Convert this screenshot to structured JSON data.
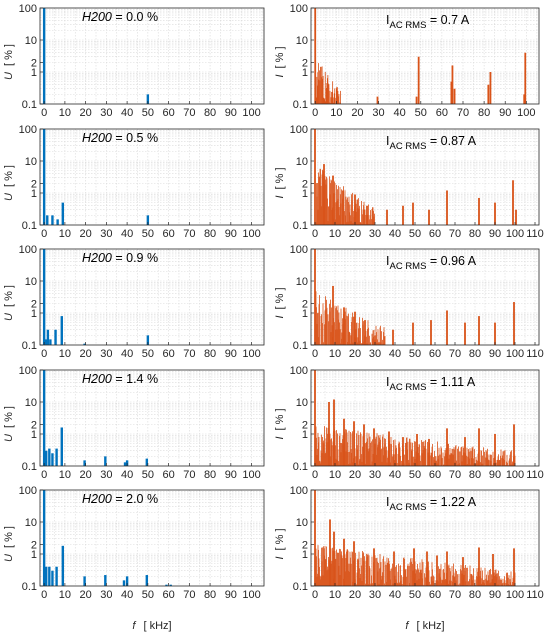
{
  "figure": {
    "x_axis_label": {
      "var": "f",
      "unit": "[ kHz]"
    },
    "left_y_axis_label": {
      "var": "U",
      "unit": "[ % ]"
    },
    "right_y_axis_label": {
      "var": "I",
      "unit": "[ % ]"
    },
    "colors": {
      "voltage": "#0072BD",
      "current": "#D95319",
      "grid": "#d9d9d9"
    }
  },
  "chart_data": [
    {
      "type": "bar",
      "side": "voltage",
      "row": 0,
      "annotation": {
        "var": "H200",
        "text": " = 0.0 %"
      },
      "x_ticks": [
        "0",
        "10",
        "20",
        "30",
        "40",
        "50",
        "60",
        "70",
        "80",
        "90",
        "100"
      ],
      "y_ticks": [
        "0.1",
        "1",
        "2",
        "10",
        "100"
      ],
      "xlim": [
        -2,
        106
      ],
      "ylim": [
        0.1,
        100
      ],
      "yscale": "log",
      "x": [
        0,
        50
      ],
      "values": [
        100,
        0.2
      ]
    },
    {
      "type": "bar",
      "side": "current",
      "row": 0,
      "annotation": {
        "main": "I",
        "sub": "AC RMS",
        "text": " = 0.7 A"
      },
      "x_ticks": [
        "0",
        "10",
        "20",
        "30",
        "40",
        "50",
        "60",
        "70",
        "80",
        "90",
        "100"
      ],
      "y_ticks": [
        "0.1",
        "1",
        "2",
        "10",
        "100"
      ],
      "xlim": [
        -2,
        106
      ],
      "ylim": [
        0.1,
        100
      ],
      "yscale": "log",
      "noise": {
        "start": 0.5,
        "end": 12,
        "hi": 3,
        "lo": 0.12
      },
      "x": [
        0,
        29.5,
        48,
        49,
        64.5,
        65,
        66,
        82,
        83,
        99,
        99.5
      ],
      "values": [
        100,
        0.17,
        0.17,
        3,
        0.5,
        1.6,
        0.3,
        0.4,
        1,
        0.2,
        4
      ]
    },
    {
      "type": "bar",
      "side": "voltage",
      "row": 1,
      "annotation": {
        "var": "H200",
        "text": " = 0.5 %"
      },
      "x_ticks": [
        "0",
        "10",
        "20",
        "30",
        "40",
        "50",
        "60",
        "70",
        "80",
        "90",
        "100"
      ],
      "y_ticks": [
        "0.1",
        "1",
        "2",
        "10",
        "100"
      ],
      "xlim": [
        -2,
        106
      ],
      "ylim": [
        0.1,
        100
      ],
      "yscale": "log",
      "x": [
        0,
        1.5,
        4,
        6.5,
        9,
        50
      ],
      "values": [
        100,
        0.2,
        0.2,
        0.15,
        0.5,
        0.2
      ]
    },
    {
      "type": "bar",
      "side": "current",
      "row": 1,
      "annotation": {
        "main": "I",
        "sub": "AC RMS",
        "text": " = 0.87 A"
      },
      "x_ticks": [
        "0",
        "10",
        "20",
        "30",
        "40",
        "50",
        "60",
        "70",
        "80",
        "90",
        "100",
        "110"
      ],
      "y_ticks": [
        "0.1",
        "1",
        "2",
        "10",
        "100"
      ],
      "xlim": [
        -2,
        112
      ],
      "ylim": [
        0.1,
        100
      ],
      "yscale": "log",
      "noise": {
        "start": 0.5,
        "end": 30,
        "hi": 8,
        "lo": 0.2
      },
      "x": [
        0,
        4.5,
        9,
        14,
        20,
        26,
        36,
        44,
        49,
        57,
        66,
        82,
        90,
        99,
        100.5
      ],
      "values": [
        100,
        8,
        3.5,
        1.2,
        0.9,
        0.4,
        0.3,
        0.4,
        0.5,
        0.3,
        1.2,
        0.7,
        0.5,
        2.5,
        0.3
      ]
    },
    {
      "type": "bar",
      "side": "voltage",
      "row": 2,
      "annotation": {
        "var": "H200",
        "text": " = 0.9 %"
      },
      "x_ticks": [
        "0",
        "10",
        "20",
        "30",
        "40",
        "50",
        "60",
        "70",
        "80",
        "90",
        "100"
      ],
      "y_ticks": [
        "0.1",
        "1",
        "2",
        "10",
        "100"
      ],
      "xlim": [
        -2,
        106
      ],
      "ylim": [
        0.1,
        100
      ],
      "yscale": "log",
      "x": [
        0,
        0.8,
        1.8,
        3,
        5.5,
        8.5,
        19.5,
        50
      ],
      "values": [
        100,
        0.15,
        0.3,
        0.15,
        0.3,
        0.8,
        0.11,
        0.2
      ]
    },
    {
      "type": "bar",
      "side": "current",
      "row": 2,
      "annotation": {
        "main": "I",
        "sub": "AC RMS",
        "text": " = 0.96 A"
      },
      "x_ticks": [
        "0",
        "10",
        "20",
        "30",
        "40",
        "50",
        "60",
        "70",
        "80",
        "90",
        "100",
        "110"
      ],
      "y_ticks": [
        "0.1",
        "1",
        "2",
        "10",
        "100"
      ],
      "xlim": [
        -2,
        112
      ],
      "ylim": [
        0.1,
        100
      ],
      "yscale": "log",
      "noise": {
        "start": 0.5,
        "end": 35,
        "hi": 5,
        "lo": 0.2
      },
      "x": [
        0,
        9,
        14.5,
        20,
        25,
        39,
        49,
        58,
        66,
        75,
        82,
        90,
        99.5
      ],
      "values": [
        100,
        7,
        1.5,
        1.1,
        0.6,
        0.3,
        0.5,
        0.6,
        1.2,
        0.5,
        0.8,
        0.5,
        2.2
      ]
    },
    {
      "type": "bar",
      "side": "voltage",
      "row": 3,
      "annotation": {
        "var": "H200",
        "text": " = 1.4 %"
      },
      "x_ticks": [
        "0",
        "10",
        "20",
        "30",
        "40",
        "50",
        "60",
        "70",
        "80",
        "90",
        "100"
      ],
      "y_ticks": [
        "0.1",
        "1",
        "2",
        "10",
        "100"
      ],
      "xlim": [
        -2,
        106
      ],
      "ylim": [
        0.1,
        100
      ],
      "yscale": "log",
      "x": [
        0,
        1,
        2.5,
        4,
        6,
        8.5,
        19.5,
        29.5,
        39,
        40,
        49.5
      ],
      "values": [
        100,
        0.3,
        0.35,
        0.25,
        0.35,
        1.6,
        0.15,
        0.2,
        0.13,
        0.15,
        0.17
      ]
    },
    {
      "type": "bar",
      "side": "current",
      "row": 3,
      "annotation": {
        "main": "I",
        "sub": "AC RMS",
        "text": " = 1.11 A"
      },
      "x_ticks": [
        "0",
        "10",
        "20",
        "30",
        "40",
        "50",
        "60",
        "70",
        "80",
        "90",
        "100",
        "110"
      ],
      "y_ticks": [
        "0.1",
        "1",
        "2",
        "10",
        "100"
      ],
      "xlim": [
        -2,
        112
      ],
      "ylim": [
        0.1,
        100
      ],
      "yscale": "log",
      "noise": {
        "start": 0.5,
        "end": 100,
        "hi": 2,
        "lo": 0.15
      },
      "x": [
        0,
        7,
        9.5,
        14.5,
        19.5,
        24.5,
        29.5,
        37,
        44,
        51,
        57,
        66,
        75,
        82,
        90,
        99.5
      ],
      "values": [
        100,
        10,
        12,
        3,
        2.5,
        2,
        1.5,
        1.2,
        0.8,
        1,
        0.7,
        1.5,
        0.8,
        1.5,
        1,
        2
      ]
    },
    {
      "type": "bar",
      "side": "voltage",
      "row": 4,
      "annotation": {
        "var": "H200",
        "text": " = 2.0 %"
      },
      "x_ticks": [
        "0",
        "10",
        "20",
        "30",
        "40",
        "50",
        "60",
        "70",
        "80",
        "90",
        "100"
      ],
      "y_ticks": [
        "0.1",
        "1",
        "2",
        "10",
        "100"
      ],
      "xlim": [
        -2,
        106
      ],
      "ylim": [
        0.1,
        100
      ],
      "yscale": "log",
      "x": [
        0,
        1,
        2.5,
        4,
        6,
        9,
        19.5,
        29.5,
        38.5,
        40,
        49.5,
        59,
        61
      ],
      "values": [
        100,
        0.4,
        0.4,
        0.3,
        0.4,
        1.8,
        0.2,
        0.22,
        0.15,
        0.2,
        0.22,
        0.11,
        0.11
      ]
    },
    {
      "type": "bar",
      "side": "current",
      "row": 4,
      "annotation": {
        "main": "I",
        "sub": "AC RMS",
        "text": " = 1.22 A"
      },
      "x_ticks": [
        "0",
        "10",
        "20",
        "30",
        "40",
        "50",
        "60",
        "70",
        "80",
        "90",
        "100",
        "110"
      ],
      "y_ticks": [
        "0.1",
        "1",
        "2",
        "10",
        "100"
      ],
      "xlim": [
        -2,
        112
      ],
      "ylim": [
        0.1,
        100
      ],
      "yscale": "log",
      "noise": {
        "start": 0.5,
        "end": 100,
        "hi": 2,
        "lo": 0.15
      },
      "x": [
        0,
        7.5,
        9.5,
        14.5,
        19.5,
        29.5,
        39.5,
        49.5,
        56,
        61,
        66,
        74,
        82,
        89,
        99.5
      ],
      "values": [
        100,
        12,
        5,
        3,
        2.5,
        1.5,
        1.2,
        1.5,
        1.2,
        0.9,
        1.2,
        0.8,
        1.6,
        1,
        1.5
      ]
    }
  ]
}
